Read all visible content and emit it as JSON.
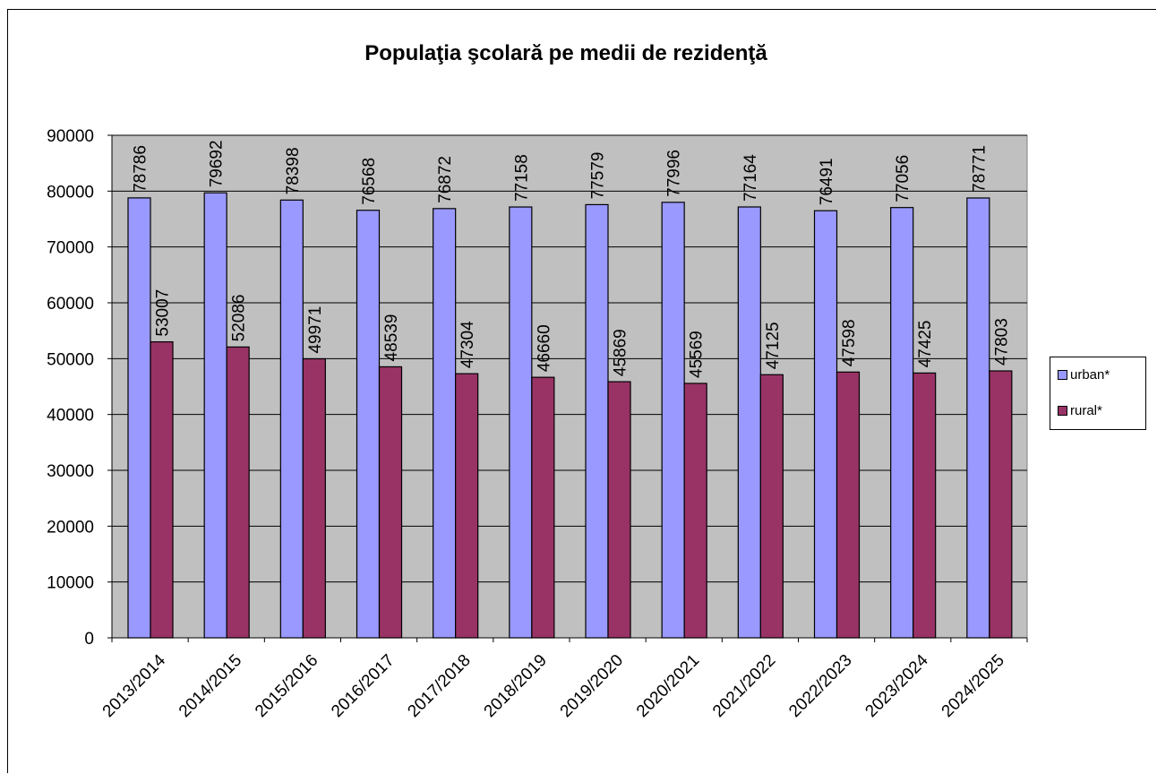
{
  "chart_data": {
    "type": "bar",
    "title": "Populaţia şcolară pe medii de rezidenţă",
    "xlabel": "",
    "ylabel": "",
    "categories": [
      "2013/2014",
      "2014/2015",
      "2015/2016",
      "2016/2017",
      "2017/2018",
      "2018/2019",
      "2019/2020",
      "2020/2021",
      "2021/2022",
      "2022/2023",
      "2023/2024",
      "2024/2025"
    ],
    "series": [
      {
        "name": "urban*",
        "color": "#9999ff",
        "values": [
          78786,
          79692,
          78398,
          76568,
          76872,
          77158,
          77579,
          77996,
          77164,
          76491,
          77056,
          78771
        ]
      },
      {
        "name": "rural*",
        "color": "#993366",
        "values": [
          53007,
          52086,
          49971,
          48539,
          47304,
          46660,
          45869,
          45569,
          47125,
          47598,
          47425,
          47803
        ]
      }
    ],
    "ylim": [
      0,
      90000
    ],
    "yticks": [
      0,
      10000,
      20000,
      30000,
      40000,
      50000,
      60000,
      70000,
      80000,
      90000
    ],
    "grid": true,
    "plot_background": "#c0c0c0",
    "legend_position": "right",
    "data_labels": true
  }
}
